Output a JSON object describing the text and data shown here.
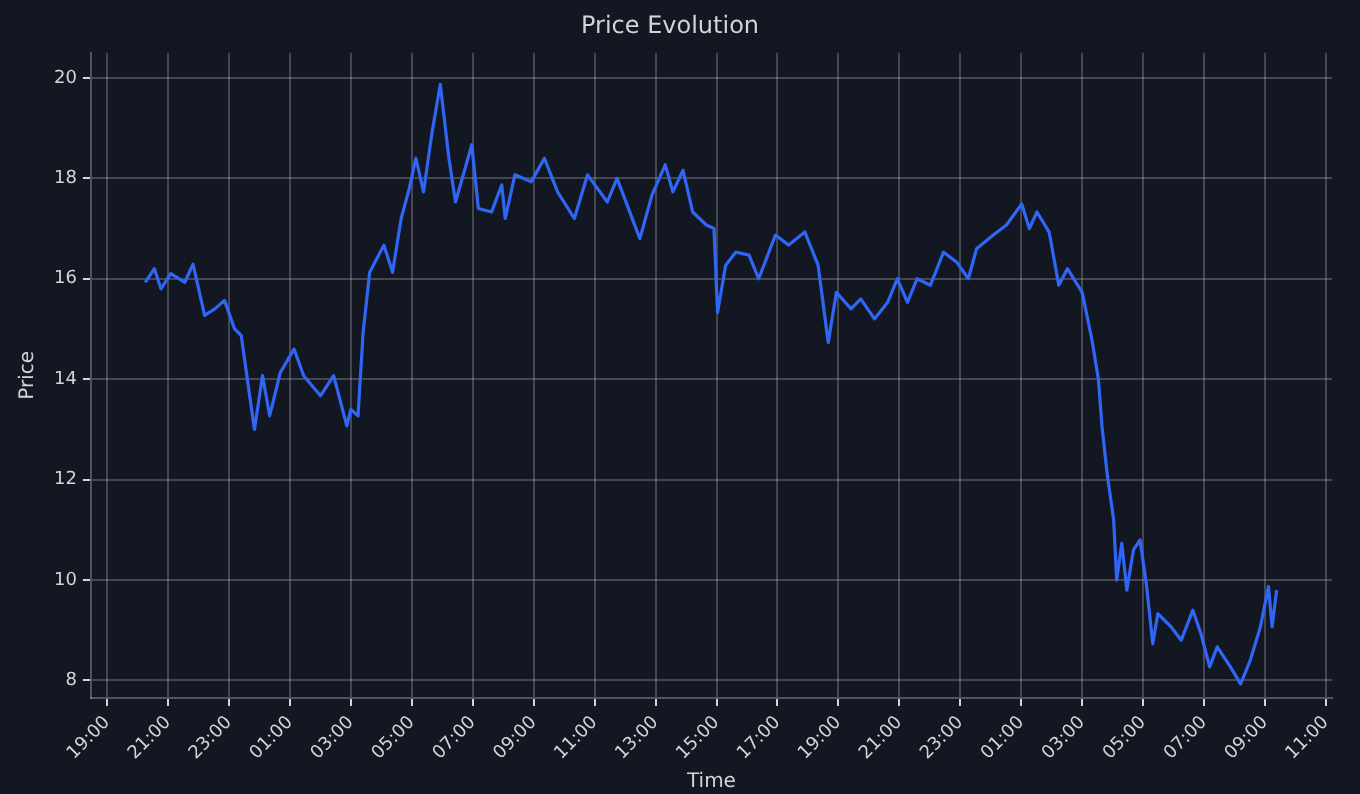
{
  "chart_data": {
    "type": "line",
    "title": "Price Evolution",
    "xlabel": "Time",
    "ylabel": "Price",
    "x": [
      "--10-05T20:15",
      "--10-05T20:33",
      "--10-05T20:46",
      "--10-05T21:05",
      "--10-05T21:33",
      "--10-05T21:49",
      "--10-05T22:12",
      "--10-05T22:32",
      "--10-05T22:51",
      "--10-05T23:11",
      "--10-05T23:24",
      "--10-05T23:50",
      "--10-06T00:06",
      "--10-06T00:20",
      "--10-06T00:41",
      "--10-06T01:08",
      "--10-06T01:27",
      "--10-06T02:00",
      "--10-06T02:26",
      "--10-06T02:52",
      "--10-06T03:00",
      "--10-06T03:14",
      "--10-06T03:24",
      "--10-06T03:37",
      "--10-06T04:05",
      "--10-06T04:22",
      "--10-06T04:39",
      "--10-06T04:55",
      "--10-06T05:08",
      "--10-06T05:23",
      "--10-06T05:40",
      "--10-06T05:56",
      "--10-06T06:13",
      "--10-06T06:26",
      "--10-06T06:45",
      "--10-06T06:58",
      "--10-06T07:11",
      "--10-06T07:37",
      "--10-06T07:57",
      "--10-06T08:04",
      "--10-06T08:23",
      "--10-06T08:55",
      "--10-06T09:21",
      "--10-06T09:47",
      "--10-06T10:20",
      "--10-06T10:46",
      "--10-06T11:25",
      "--10-06T11:44",
      "--10-06T12:29",
      "--10-06T12:53",
      "--10-06T13:19",
      "--10-06T13:34",
      "--10-06T13:54",
      "--10-06T14:13",
      "--10-06T14:40",
      "--10-06T14:55",
      "--10-06T15:02",
      "--10-06T15:18",
      "--10-06T15:38",
      "--10-06T16:04",
      "--10-06T16:23",
      "--10-06T16:56",
      "--10-06T17:22",
      "--10-06T17:54",
      "--10-06T18:20",
      "--10-06T18:40",
      "--10-06T18:56",
      "--10-06T19:25",
      "--10-06T19:44",
      "--10-06T20:11",
      "--10-06T20:37",
      "--10-06T20:56",
      "--10-06T21:16",
      "--10-06T21:35",
      "--10-06T22:01",
      "--10-06T22:27",
      "--10-06T22:53",
      "--10-06T23:16",
      "--10-06T23:32",
      "--10-07T00:05",
      "--10-07T00:31",
      "--10-07T01:01",
      "--10-07T01:16",
      "--10-07T01:31",
      "--10-07T01:55",
      "--10-07T02:14",
      "--10-07T02:31",
      "--10-07T03:00",
      "--10-07T03:19",
      "--10-07T03:32",
      "--10-07T03:39",
      "--10-07T03:49",
      "--10-07T04:02",
      "--10-07T04:08",
      "--10-07T04:18",
      "--10-07T04:28",
      "--10-07T04:41",
      "--10-07T04:54",
      "--10-07T05:07",
      "--10-07T05:19",
      "--10-07T05:29",
      "--10-07T05:55",
      "--10-07T06:15",
      "--10-07T06:38",
      "--10-07T06:54",
      "--10-07T07:11",
      "--10-07T07:26",
      "--10-07T07:52",
      "--10-07T08:12",
      "--10-07T08:31",
      "--10-07T08:51",
      "--10-07T09:07",
      "--10-07T09:14",
      "--10-07T09:23"
    ],
    "series": [
      {
        "color": "#2f66f5",
        "values": [
          15.93,
          16.2,
          15.8,
          16.1,
          15.93,
          16.29,
          15.27,
          15.4,
          15.57,
          15.0,
          14.87,
          13.0,
          14.07,
          13.27,
          14.13,
          14.6,
          14.07,
          13.67,
          14.07,
          13.07,
          13.4,
          13.27,
          14.93,
          16.13,
          16.67,
          16.13,
          17.2,
          17.8,
          18.4,
          17.73,
          18.93,
          19.87,
          18.4,
          17.53,
          18.2,
          18.67,
          17.4,
          17.33,
          17.87,
          17.2,
          18.07,
          17.93,
          18.4,
          17.73,
          17.2,
          18.07,
          17.53,
          18.0,
          16.8,
          17.67,
          18.27,
          17.73,
          18.16,
          17.33,
          17.07,
          17.0,
          15.33,
          16.27,
          16.53,
          16.47,
          16.0,
          16.87,
          16.67,
          16.93,
          16.27,
          14.73,
          15.73,
          15.4,
          15.6,
          15.2,
          15.53,
          16.0,
          15.53,
          16.0,
          15.87,
          16.53,
          16.33,
          16.0,
          16.6,
          16.87,
          17.07,
          17.49,
          17.0,
          17.33,
          16.93,
          15.87,
          16.2,
          15.73,
          14.8,
          14.0,
          13.07,
          12.13,
          11.2,
          10.0,
          10.73,
          9.8,
          10.6,
          10.8,
          9.87,
          8.73,
          9.33,
          9.07,
          8.8,
          9.4,
          8.93,
          8.27,
          8.67,
          8.27,
          7.93,
          8.4,
          9.07,
          9.87,
          9.07,
          9.8
        ]
      }
    ],
    "xlim": [
      "--10-05T18:28",
      "--10-07T11:12"
    ],
    "xticks": [
      {
        "value": "--10-05T19:00",
        "label": "19:00"
      },
      {
        "value": "--10-05T21:00",
        "label": "21:00"
      },
      {
        "value": "--10-05T23:00",
        "label": "23:00"
      },
      {
        "value": "--10-06T01:00",
        "label": "01:00"
      },
      {
        "value": "--10-06T03:00",
        "label": "03:00"
      },
      {
        "value": "--10-06T05:00",
        "label": "05:00"
      },
      {
        "value": "--10-06T07:00",
        "label": "07:00"
      },
      {
        "value": "--10-06T09:00",
        "label": "09:00"
      },
      {
        "value": "--10-06T11:00",
        "label": "11:00"
      },
      {
        "value": "--10-06T13:00",
        "label": "13:00"
      },
      {
        "value": "--10-06T15:00",
        "label": "15:00"
      },
      {
        "value": "--10-06T17:00",
        "label": "17:00"
      },
      {
        "value": "--10-06T19:00",
        "label": "19:00"
      },
      {
        "value": "--10-06T21:00",
        "label": "21:00"
      },
      {
        "value": "--10-06T23:00",
        "label": "23:00"
      },
      {
        "value": "--10-07T01:00",
        "label": "01:00"
      },
      {
        "value": "--10-07T03:00",
        "label": "03:00"
      },
      {
        "value": "--10-07T05:00",
        "label": "05:00"
      },
      {
        "value": "--10-07T07:00",
        "label": "07:00"
      },
      {
        "value": "--10-07T09:00",
        "label": "09:00"
      },
      {
        "value": "--10-07T11:00",
        "label": "11:00"
      }
    ],
    "ylim": [
      7.65,
      20.5
    ],
    "yticks": [
      8,
      10,
      12,
      14,
      16,
      18,
      20
    ],
    "grid": true,
    "marker": "none",
    "line_style": "solid"
  }
}
